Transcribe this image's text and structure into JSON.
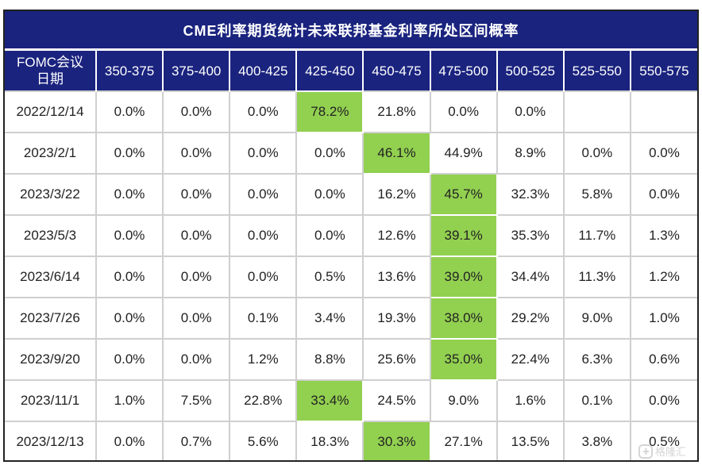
{
  "chart_data": {
    "type": "table",
    "title": "CME利率期货统计未来联邦基金利率所处区间概率",
    "header_first": "FOMC会议\n日期",
    "columns": [
      "350-375",
      "375-400",
      "400-425",
      "425-450",
      "450-475",
      "475-500",
      "500-525",
      "525-550",
      "550-575"
    ],
    "rows": [
      {
        "date": "2022/12/14",
        "values": [
          "0.0%",
          "0.0%",
          "0.0%",
          "78.2%",
          "21.8%",
          "0.0%",
          "0.0%",
          "",
          ""
        ],
        "highlight": 3
      },
      {
        "date": "2023/2/1",
        "values": [
          "0.0%",
          "0.0%",
          "0.0%",
          "0.0%",
          "46.1%",
          "44.9%",
          "8.9%",
          "0.0%",
          "0.0%"
        ],
        "highlight": 4
      },
      {
        "date": "2023/3/22",
        "values": [
          "0.0%",
          "0.0%",
          "0.0%",
          "0.0%",
          "16.2%",
          "45.7%",
          "32.3%",
          "5.8%",
          "0.0%"
        ],
        "highlight": 5
      },
      {
        "date": "2023/5/3",
        "values": [
          "0.0%",
          "0.0%",
          "0.0%",
          "0.0%",
          "12.6%",
          "39.1%",
          "35.3%",
          "11.7%",
          "1.3%"
        ],
        "highlight": 5
      },
      {
        "date": "2023/6/14",
        "values": [
          "0.0%",
          "0.0%",
          "0.0%",
          "0.5%",
          "13.6%",
          "39.0%",
          "34.4%",
          "11.3%",
          "1.2%"
        ],
        "highlight": 5
      },
      {
        "date": "2023/7/26",
        "values": [
          "0.0%",
          "0.0%",
          "0.1%",
          "3.4%",
          "19.3%",
          "38.0%",
          "29.2%",
          "9.0%",
          "1.0%"
        ],
        "highlight": 5
      },
      {
        "date": "2023/9/20",
        "values": [
          "0.0%",
          "0.0%",
          "1.2%",
          "8.8%",
          "25.6%",
          "35.0%",
          "22.4%",
          "6.3%",
          "0.6%"
        ],
        "highlight": 5
      },
      {
        "date": "2023/11/1",
        "values": [
          "1.0%",
          "7.5%",
          "22.8%",
          "33.4%",
          "24.5%",
          "9.0%",
          "1.6%",
          "0.1%",
          "0.0%"
        ],
        "highlight": 3
      },
      {
        "date": "2023/12/13",
        "values": [
          "0.0%",
          "0.7%",
          "5.6%",
          "18.3%",
          "30.3%",
          "27.1%",
          "13.5%",
          "3.8%",
          "0.5%"
        ],
        "highlight": 4
      }
    ],
    "colors": {
      "header_bg": "#1a237e",
      "highlight": "#92d050",
      "grid": "#cfcfcf"
    }
  },
  "watermark": {
    "icon": "gelonghui-logo-icon",
    "text": "格隆汇"
  }
}
